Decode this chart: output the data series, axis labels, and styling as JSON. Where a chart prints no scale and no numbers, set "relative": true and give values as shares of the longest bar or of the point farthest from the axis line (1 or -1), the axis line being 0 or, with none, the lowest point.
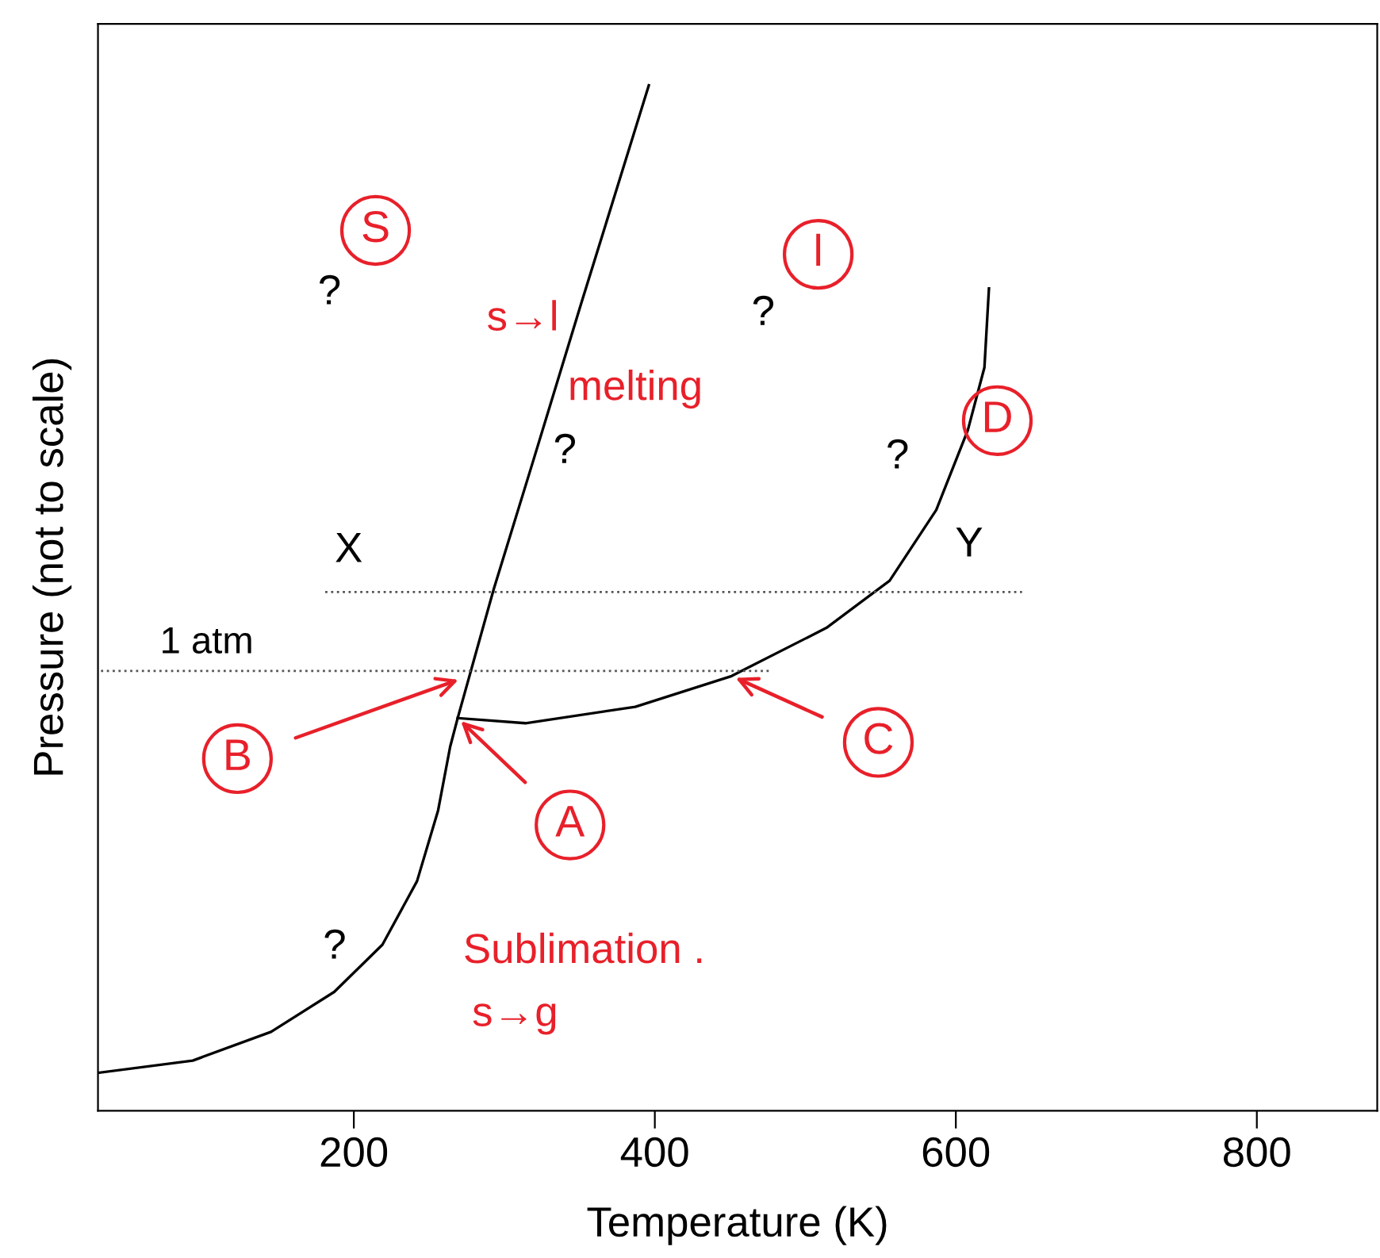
{
  "chart_data": {
    "type": "line",
    "xlabel": "Temperature (K)",
    "ylabel": "Pressure (not to scale)",
    "relative": true,
    "xlim": [
      30,
      880
    ],
    "xticks": [
      200,
      400,
      600,
      800
    ],
    "tick_labels": "x",
    "grid": false,
    "legend": false,
    "marker": "none",
    "series": [
      {
        "color": "#000000",
        "line_style": "solid",
        "x": [
          30,
          93,
          145,
          187,
          219,
          242,
          256,
          264,
          269,
          293,
          319,
          351,
          396
        ],
        "values": [
          0.037,
          0.049,
          0.077,
          0.116,
          0.162,
          0.224,
          0.293,
          0.355,
          0.383,
          0.509,
          0.633,
          0.787,
          1.0
        ]
      },
      {
        "color": "#000000",
        "line_style": "solid",
        "x": [
          269,
          314,
          387,
          451,
          514,
          556,
          587,
          608,
          619,
          622
        ],
        "values": [
          0.383,
          0.378,
          0.394,
          0.424,
          0.471,
          0.517,
          0.586,
          0.664,
          0.725,
          0.802
        ]
      },
      {
        "color": "#555555",
        "line_style": "dotted",
        "x": [
          32,
          476
        ],
        "values": [
          0.429,
          0.429
        ]
      },
      {
        "color": "#555555",
        "line_style": "dotted",
        "x": [
          181,
          644
        ],
        "values": [
          0.506,
          0.506
        ]
      }
    ],
    "annotations": [
      "1 atm",
      "X",
      "Y",
      "?",
      "?",
      "?",
      "?",
      "?",
      "S",
      "l",
      "s→l",
      "melting",
      "D",
      "Sublimation .",
      "s→g",
      "B",
      {
        "text": "A",
        "x": 269,
        "y": 0.383
      },
      {
        "text": "C",
        "x": 451,
        "y": 0.424
      }
    ]
  }
}
